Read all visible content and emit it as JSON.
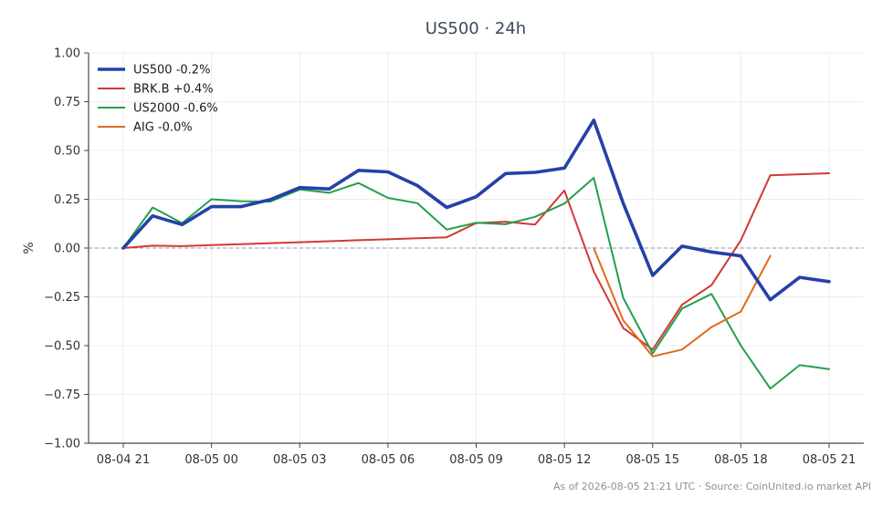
{
  "chart_data": {
    "type": "line",
    "title": "US500 · 24h",
    "xlabel": "",
    "ylabel": "%",
    "ylim": [
      -1.0,
      1.0
    ],
    "y_ticks": [
      1.0,
      0.75,
      0.5,
      0.25,
      0.0,
      -0.25,
      -0.5,
      -0.75,
      -1.0
    ],
    "y_tick_labels": [
      "1.00",
      "0.75",
      "0.50",
      "0.25",
      "0.00",
      "−0.25",
      "−0.50",
      "−0.75",
      "−1.00"
    ],
    "x_tick_labels": [
      "08-04 21",
      "08-05 00",
      "08-05 03",
      "08-05 06",
      "08-05 09",
      "08-05 12",
      "08-05 15",
      "08-05 18",
      "08-05 21"
    ],
    "x_hours": [
      "08-04 21",
      "08-04 22",
      "08-04 23",
      "08-05 00",
      "08-05 01",
      "08-05 02",
      "08-05 03",
      "08-05 04",
      "08-05 05",
      "08-05 06",
      "08-05 07",
      "08-05 08",
      "08-05 09",
      "08-05 10",
      "08-05 11",
      "08-05 12",
      "08-05 13",
      "08-05 14",
      "08-05 15",
      "08-05 16",
      "08-05 17",
      "08-05 18",
      "08-05 19",
      "08-05 20",
      "08-05 21"
    ],
    "grid": true,
    "zero_line": true,
    "legend_position": "top-left",
    "series": [
      {
        "name": "US500 -0.2%",
        "color": "#2541a8",
        "values": [
          0.0,
          0.165,
          0.12,
          0.212,
          0.212,
          0.248,
          0.31,
          0.303,
          0.398,
          0.39,
          0.32,
          0.208,
          0.263,
          0.382,
          0.388,
          0.41,
          0.655,
          0.23,
          -0.14,
          0.01,
          -0.02,
          -0.04,
          -0.265,
          -0.15,
          -0.172
        ]
      },
      {
        "name": "BRK.B +0.4%",
        "color": "#d03a35",
        "values": [
          0.0,
          0.012,
          0.01,
          0.015,
          0.02,
          0.025,
          0.03,
          0.035,
          0.04,
          0.045,
          0.05,
          0.055,
          0.128,
          0.135,
          0.12,
          0.295,
          -0.12,
          -0.41,
          -0.52,
          -0.29,
          -0.19,
          0.04,
          0.373,
          0.378,
          0.383
        ]
      },
      {
        "name": "US2000 -0.6%",
        "color": "#22a04d",
        "values": [
          0.0,
          0.208,
          0.128,
          0.25,
          0.24,
          0.238,
          0.3,
          0.283,
          0.333,
          0.257,
          0.23,
          0.095,
          0.13,
          0.122,
          0.16,
          0.228,
          0.36,
          -0.255,
          -0.54,
          -0.31,
          -0.235,
          -0.5,
          -0.72,
          -0.6,
          -0.62
        ]
      },
      {
        "name": "AIG -0.0%",
        "color": "#e06a1d",
        "values": [
          null,
          null,
          null,
          null,
          null,
          null,
          null,
          null,
          null,
          null,
          null,
          null,
          null,
          null,
          null,
          null,
          0.0,
          -0.37,
          -0.555,
          -0.52,
          -0.405,
          -0.325,
          -0.04,
          null,
          null
        ]
      }
    ]
  },
  "footer": {
    "note": "As of 2026-08-05 21:21 UTC · Source: CoinUnited.io market API"
  }
}
